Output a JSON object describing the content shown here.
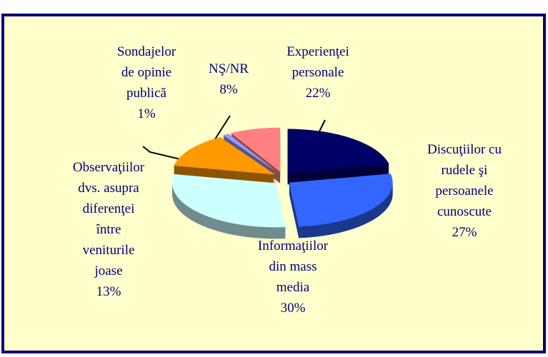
{
  "chart_data": {
    "type": "pie",
    "categories": [
      "Experienţei\npersonale",
      "Discuţiilor cu\nrudele şi\npersoanele\ncunoscute",
      "Informaţiilor\ndin mass\nmedia",
      "Observaţiilor\ndvs. asupra\ndiferenţei\nîntre\nveniturile\njoase",
      "Sondajelor\nde opinie\npublică",
      "NŞ/NR"
    ],
    "values": [
      22,
      27,
      30,
      13,
      1,
      8
    ],
    "value_labels": [
      "22%",
      "27%",
      "30%",
      "13%",
      "1%",
      "8%"
    ],
    "colors": [
      "#000066",
      "#3366ff",
      "#ccffff",
      "#ff9900",
      "#9999ff",
      "#ff8080"
    ],
    "start_angle": -90
  }
}
